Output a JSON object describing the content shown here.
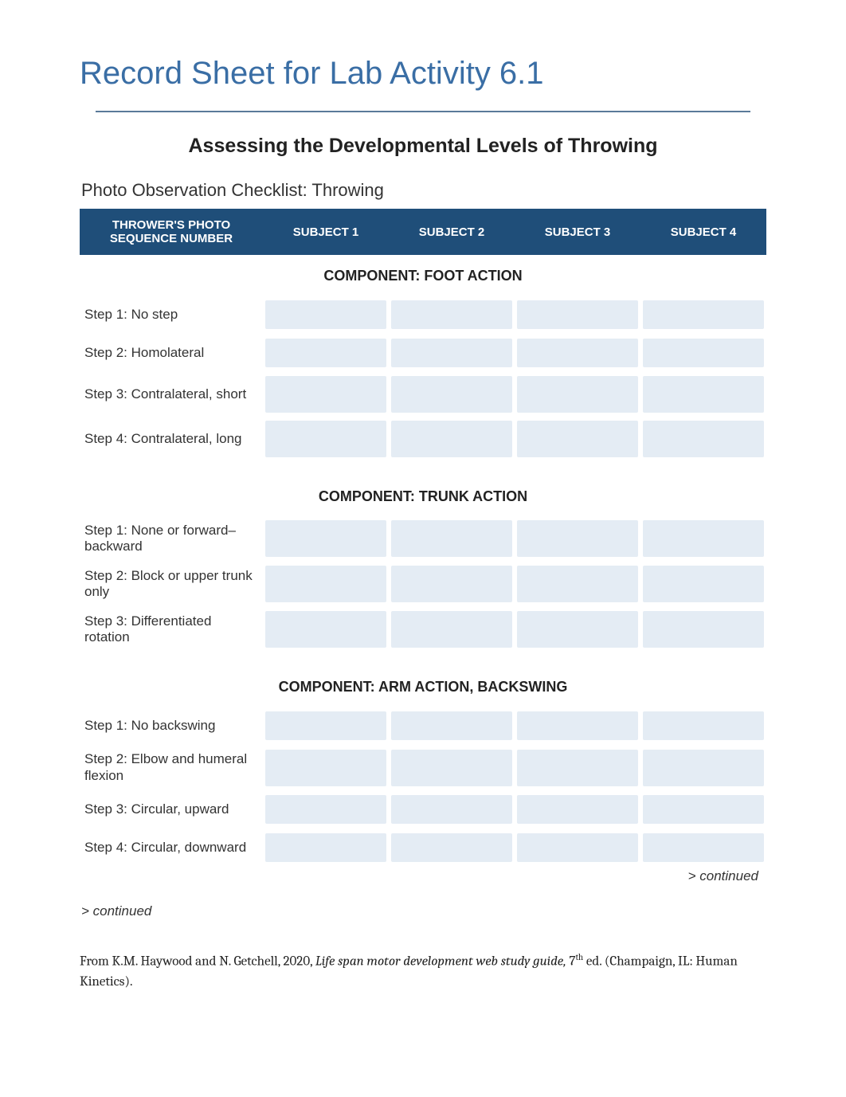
{
  "colors": {
    "title": "#3a6ea5",
    "header_bg": "#1f4e79",
    "header_text": "#ffffff",
    "cell_bg": "#e4ecf4",
    "divider": "#5a7a99",
    "text": "#333333"
  },
  "title": "Record Sheet for Lab Activity 6.1",
  "subtitle": "Assessing the Developmental Levels of Throwing",
  "checklist_title": "Photo Observation Checklist: Throwing",
  "table": {
    "header_col0": "THROWER'S PHOTO SEQUENCE NUMBER",
    "subjects": [
      "SUBJECT 1",
      "SUBJECT 2",
      "SUBJECT 3",
      "SUBJECT 4"
    ],
    "sections": [
      {
        "component": "COMPONENT: FOOT ACTION",
        "rows": [
          "Step 1: No step",
          "Step 2: Homolateral",
          "Step 3: Contralateral, short",
          "Step 4: Contralateral, long"
        ]
      },
      {
        "component": "COMPONENT: TRUNK ACTION",
        "rows": [
          "Step 1: None or forward–backward",
          "Step 2: Block or upper trunk only",
          "Step 3: Differentiated rotation"
        ]
      },
      {
        "component": "COMPONENT: ARM ACTION, BACKSWING",
        "rows": [
          "Step 1: No backswing",
          "Step 2: Elbow and humeral flexion",
          "Step 3: Circular, upward",
          "Step 4: Circular, downward"
        ]
      }
    ]
  },
  "continued_right": "> continued",
  "continued_left": "> continued",
  "citation": {
    "prefix": "From K.M. Haywood and N. Getchell, 2020, ",
    "book": "Life span motor development web study guide,",
    "edition_num": "7",
    "edition_suffix": "th",
    "edition_after": " ed. (Champaign, IL: Human Kinetics)."
  }
}
